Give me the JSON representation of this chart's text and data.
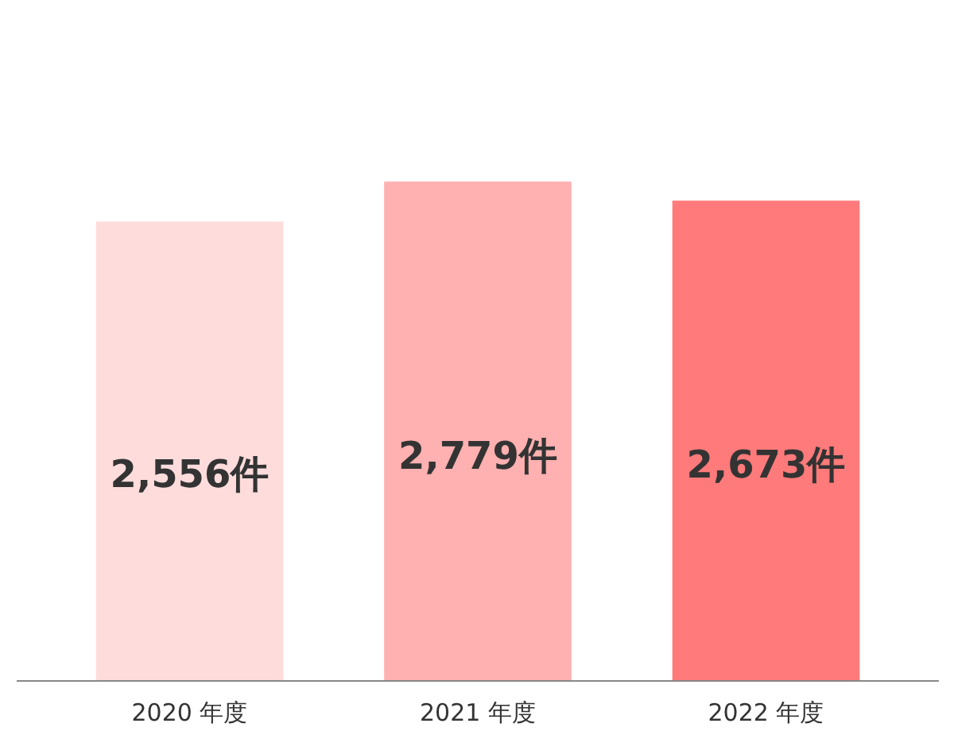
{
  "chart_data": {
    "type": "bar",
    "categories": [
      "2020 年度",
      "2021 年度",
      "2022 年度"
    ],
    "values": [
      2556,
      2779,
      2673
    ],
    "colors": [
      "#ffdcdc",
      "#ffb0b0",
      "#ff7a7a"
    ],
    "value_labels": [
      "2,556件",
      "2,779件",
      "2,673件"
    ],
    "grid": false
  }
}
